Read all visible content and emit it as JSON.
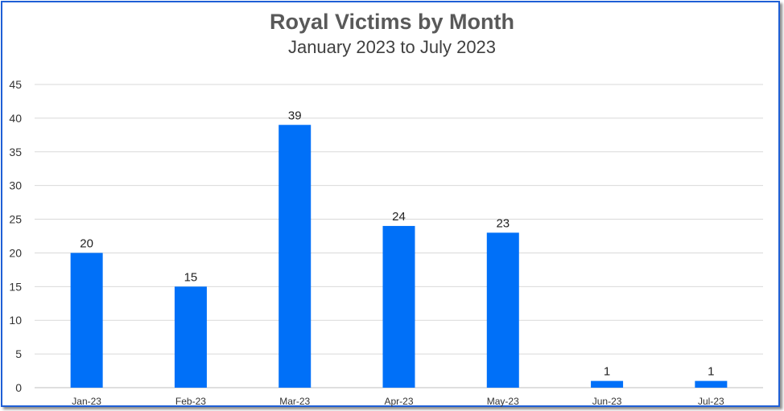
{
  "chart_data": {
    "type": "bar",
    "title": "Royal Victims by Month",
    "subtitle": "January  2023 to July 2023",
    "xlabel": "",
    "ylabel": "",
    "categories": [
      "Jan-23",
      "Feb-23",
      "Mar-23",
      "Apr-23",
      "May-23",
      "Jun-23",
      "Jul-23"
    ],
    "values": [
      20,
      15,
      39,
      24,
      23,
      1,
      1
    ],
    "data_labels": [
      "20",
      "15",
      "39",
      "24",
      "23",
      "1",
      "1"
    ],
    "ylim": [
      0,
      45
    ],
    "yticks": [
      0,
      5,
      10,
      15,
      20,
      25,
      30,
      35,
      40,
      45
    ],
    "grid": true,
    "legend": "none",
    "bar_color": "#0070f8",
    "grid_color": "#d9d9d9",
    "border_color": "#1f5fd6"
  }
}
